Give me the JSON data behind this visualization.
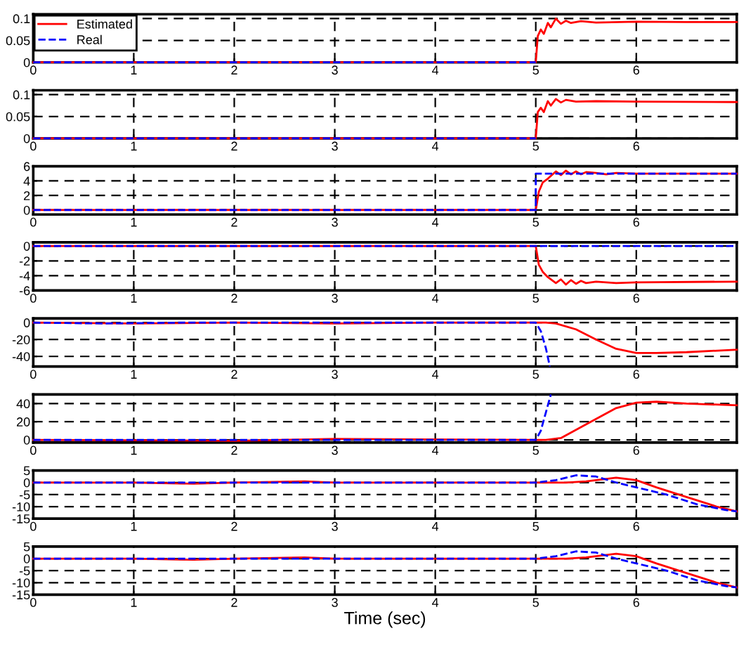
{
  "chart_data": [
    {
      "type": "line",
      "xlim": [
        0,
        7
      ],
      "xticks": [
        0,
        1,
        2,
        3,
        4,
        5,
        6
      ],
      "ylim": [
        0,
        0.11
      ],
      "yticks": [
        0,
        0.05,
        0.1
      ],
      "grid": true,
      "legend": "top left",
      "series": [
        {
          "name": "Estimated",
          "color": "#ff0000",
          "line_style": "solid",
          "x": [
            0,
            5,
            5.02,
            5.05,
            5.08,
            5.12,
            5.15,
            5.2,
            5.25,
            5.3,
            5.35,
            5.45,
            5.6,
            6,
            6.5,
            7
          ],
          "values": [
            0,
            0,
            0.06,
            0.075,
            0.065,
            0.09,
            0.08,
            0.1,
            0.088,
            0.095,
            0.09,
            0.094,
            0.091,
            0.093,
            0.092,
            0.092
          ]
        },
        {
          "name": "Real",
          "color": "#0000ff",
          "line_style": "dashed",
          "x": [
            0,
            5
          ],
          "values": [
            0,
            0
          ]
        }
      ]
    },
    {
      "type": "line",
      "xlim": [
        0,
        7
      ],
      "xticks": [
        0,
        1,
        2,
        3,
        4,
        5,
        6
      ],
      "ylim": [
        0,
        0.11
      ],
      "yticks": [
        0,
        0.05,
        0.1
      ],
      "grid": true,
      "series": [
        {
          "color": "#ff0000",
          "line_style": "solid",
          "x": [
            0,
            5,
            5.02,
            5.05,
            5.08,
            5.12,
            5.15,
            5.2,
            5.25,
            5.3,
            5.4,
            5.6,
            6,
            7
          ],
          "values": [
            0,
            0,
            0.06,
            0.07,
            0.06,
            0.085,
            0.075,
            0.09,
            0.082,
            0.088,
            0.084,
            0.085,
            0.084,
            0.083
          ]
        },
        {
          "color": "#0000ff",
          "line_style": "dashed",
          "x": [
            0,
            5
          ],
          "values": [
            0,
            0
          ]
        }
      ]
    },
    {
      "type": "line",
      "xlim": [
        0,
        7
      ],
      "xticks": [
        0,
        1,
        2,
        3,
        4,
        5,
        6
      ],
      "ylim": [
        -0.6,
        6
      ],
      "yticks": [
        0,
        2,
        4,
        6
      ],
      "grid": true,
      "series": [
        {
          "color": "#ff0000",
          "line_style": "solid",
          "x": [
            0,
            5,
            5.03,
            5.07,
            5.12,
            5.2,
            5.25,
            5.3,
            5.35,
            5.4,
            5.45,
            5.5,
            5.6,
            5.7,
            5.8,
            6,
            7
          ],
          "values": [
            0,
            0,
            2.5,
            3.8,
            4.3,
            5.3,
            4.8,
            5.4,
            4.9,
            5.3,
            4.9,
            5.2,
            5.1,
            4.9,
            5.1,
            5,
            5
          ]
        },
        {
          "color": "#0000ff",
          "line_style": "dashed",
          "x": [
            0,
            5,
            5,
            7
          ],
          "values": [
            0,
            0,
            5,
            5
          ]
        }
      ]
    },
    {
      "type": "line",
      "xlim": [
        0,
        7
      ],
      "xticks": [
        0,
        1,
        2,
        3,
        4,
        5,
        6
      ],
      "ylim": [
        -6,
        0.5
      ],
      "yticks": [
        -6,
        -4,
        -2,
        0
      ],
      "grid": true,
      "series": [
        {
          "color": "#ff0000",
          "line_style": "solid",
          "x": [
            0,
            5,
            5.03,
            5.07,
            5.12,
            5.2,
            5.25,
            5.3,
            5.35,
            5.4,
            5.45,
            5.5,
            5.6,
            5.8,
            6,
            7
          ],
          "values": [
            0,
            0,
            -2.5,
            -3.5,
            -4.2,
            -5,
            -4.5,
            -5.2,
            -4.6,
            -5.1,
            -4.7,
            -5,
            -4.8,
            -5,
            -4.9,
            -4.8
          ]
        },
        {
          "color": "#0000ff",
          "line_style": "dashed",
          "x": [
            0,
            7
          ],
          "values": [
            0,
            0
          ]
        }
      ]
    },
    {
      "type": "line",
      "xlim": [
        0,
        7
      ],
      "xticks": [
        0,
        1,
        2,
        3,
        4,
        5,
        6
      ],
      "ylim": [
        -52,
        5
      ],
      "yticks": [
        -40,
        -20,
        0
      ],
      "grid": true,
      "series": [
        {
          "color": "#ff0000",
          "line_style": "solid",
          "x": [
            0,
            1,
            2,
            3,
            4,
            5,
            5.1,
            5.2,
            5.4,
            5.6,
            5.8,
            6,
            6.2,
            6.5,
            7
          ],
          "values": [
            0,
            -1,
            0,
            -1,
            0,
            0,
            0,
            -1,
            -8,
            -20,
            -31,
            -36,
            -36,
            -35,
            -32
          ]
        },
        {
          "color": "#0000ff",
          "line_style": "dashed",
          "x": [
            0,
            0.7,
            1.5,
            3,
            5,
            5.05,
            5.1,
            5.14
          ],
          "values": [
            0,
            -1,
            0,
            0,
            0,
            -10,
            -30,
            -52
          ]
        }
      ]
    },
    {
      "type": "line",
      "xlim": [
        0,
        7
      ],
      "xticks": [
        0,
        1,
        2,
        3,
        4,
        5,
        6
      ],
      "ylim": [
        -3,
        50
      ],
      "yticks": [
        0,
        20,
        40
      ],
      "grid": true,
      "series": [
        {
          "color": "#ff0000",
          "line_style": "solid",
          "x": [
            0,
            2,
            3,
            5,
            5.1,
            5.25,
            5.5,
            5.8,
            6,
            6.2,
            6.5,
            7
          ],
          "values": [
            0,
            -1,
            1,
            0,
            0,
            2,
            17,
            35,
            41,
            42,
            40,
            38
          ]
        },
        {
          "color": "#0000ff",
          "line_style": "dashed",
          "x": [
            0,
            5,
            5.05,
            5.1,
            5.15
          ],
          "values": [
            0,
            0,
            10,
            30,
            50
          ]
        }
      ]
    },
    {
      "type": "line",
      "xlim": [
        0,
        7
      ],
      "xticks": [
        0,
        1,
        2,
        3,
        4,
        5,
        6
      ],
      "ylim": [
        -15,
        5
      ],
      "yticks": [
        -15,
        -10,
        -5,
        0,
        5
      ],
      "grid": true,
      "series": [
        {
          "color": "#ff0000",
          "line_style": "solid",
          "x": [
            0,
            1,
            1.6,
            2,
            2.7,
            3,
            5,
            5.3,
            5.5,
            5.8,
            6,
            6.2,
            6.5,
            6.8,
            7
          ],
          "values": [
            0,
            0,
            -0.5,
            0,
            0.5,
            0,
            0,
            0,
            0.5,
            2,
            1,
            -2,
            -6,
            -10,
            -12
          ]
        },
        {
          "color": "#0000ff",
          "line_style": "dashed",
          "x": [
            0,
            5,
            5.2,
            5.4,
            5.6,
            5.8,
            6,
            6.3,
            6.6,
            6.9,
            7
          ],
          "values": [
            0,
            0,
            1,
            3,
            2.5,
            0,
            -2,
            -5,
            -9,
            -11.5,
            -12
          ]
        }
      ]
    },
    {
      "type": "line",
      "xlim": [
        0,
        7
      ],
      "xticks": [
        0,
        1,
        2,
        3,
        4,
        5,
        6
      ],
      "ylim": [
        -15,
        5
      ],
      "yticks": [
        -15,
        -10,
        -5,
        0,
        5
      ],
      "grid": true,
      "xlabel": "Time (sec)",
      "series": [
        {
          "color": "#ff0000",
          "line_style": "solid",
          "x": [
            0,
            1,
            1.6,
            2,
            2.7,
            3,
            5,
            5.3,
            5.5,
            5.8,
            6,
            6.2,
            6.5,
            6.8,
            7
          ],
          "values": [
            0,
            0,
            -0.5,
            0,
            0.5,
            0,
            0,
            0,
            0.5,
            2,
            1,
            -2,
            -6,
            -10,
            -12
          ]
        },
        {
          "color": "#0000ff",
          "line_style": "dashed",
          "x": [
            0,
            5,
            5.2,
            5.4,
            5.6,
            5.8,
            6,
            6.3,
            6.6,
            6.9,
            7
          ],
          "values": [
            0,
            0,
            1,
            3,
            2.5,
            0,
            -2,
            -5,
            -9,
            -11.5,
            -12
          ]
        }
      ]
    }
  ]
}
